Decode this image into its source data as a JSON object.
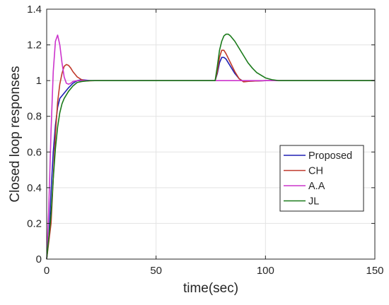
{
  "chart_data": {
    "type": "line",
    "title": "",
    "xlabel": "time(sec)",
    "ylabel": "Closed loop responses",
    "xlim": [
      0,
      150
    ],
    "ylim": [
      0,
      1.4
    ],
    "xticks": [
      0,
      50,
      100,
      150
    ],
    "yticks": [
      0,
      0.2,
      0.4,
      0.6,
      0.8,
      1,
      1.2,
      1.4
    ],
    "xtick_labels": [
      "0",
      "50",
      "100",
      "150"
    ],
    "ytick_labels": [
      "0",
      "0.2",
      "0.4",
      "0.6",
      "0.8",
      "1",
      "1.2",
      "1.4"
    ],
    "grid": true,
    "legend_position": "right-middle",
    "series": [
      {
        "name": "Proposed",
        "color": "#1f1fb4",
        "points": [
          [
            0,
            0
          ],
          [
            1,
            0.12
          ],
          [
            2,
            0.38
          ],
          [
            3,
            0.6
          ],
          [
            4,
            0.75
          ],
          [
            5,
            0.85
          ],
          [
            6,
            0.9
          ],
          [
            8,
            0.93
          ],
          [
            10,
            0.96
          ],
          [
            12,
            0.985
          ],
          [
            14,
            1.0
          ],
          [
            16,
            1.005
          ],
          [
            20,
            1.0
          ],
          [
            30,
            1.0
          ],
          [
            77,
            1.0
          ],
          [
            78,
            1.04
          ],
          [
            79,
            1.1
          ],
          [
            80,
            1.13
          ],
          [
            81,
            1.13
          ],
          [
            82,
            1.12
          ],
          [
            84,
            1.08
          ],
          [
            86,
            1.04
          ],
          [
            88,
            1.01
          ],
          [
            90,
            0.995
          ],
          [
            93,
            0.997
          ],
          [
            100,
            1.0
          ],
          [
            150,
            1.0
          ]
        ]
      },
      {
        "name": "CH",
        "color": "#c0392b",
        "points": [
          [
            0,
            0
          ],
          [
            2,
            0.2
          ],
          [
            3,
            0.45
          ],
          [
            4,
            0.7
          ],
          [
            5,
            0.88
          ],
          [
            6,
            0.98
          ],
          [
            7,
            1.04
          ],
          [
            8,
            1.08
          ],
          [
            9,
            1.09
          ],
          [
            10,
            1.085
          ],
          [
            11,
            1.07
          ],
          [
            12,
            1.05
          ],
          [
            14,
            1.02
          ],
          [
            16,
            1.005
          ],
          [
            18,
            0.998
          ],
          [
            22,
            1.0
          ],
          [
            77,
            1.0
          ],
          [
            78,
            1.05
          ],
          [
            79,
            1.13
          ],
          [
            80,
            1.17
          ],
          [
            81,
            1.17
          ],
          [
            82,
            1.15
          ],
          [
            84,
            1.1
          ],
          [
            86,
            1.05
          ],
          [
            88,
            1.01
          ],
          [
            90,
            0.993
          ],
          [
            93,
            0.997
          ],
          [
            100,
            1.0
          ],
          [
            150,
            1.0
          ]
        ]
      },
      {
        "name": "A.A",
        "color": "#cc33cc",
        "points": [
          [
            0,
            0
          ],
          [
            1,
            0.3
          ],
          [
            2,
            0.72
          ],
          [
            3,
            1.05
          ],
          [
            4,
            1.22
          ],
          [
            5,
            1.255
          ],
          [
            6,
            1.2
          ],
          [
            7,
            1.1
          ],
          [
            8,
            1.02
          ],
          [
            9,
            0.985
          ],
          [
            10,
            0.98
          ],
          [
            11,
            0.985
          ],
          [
            12,
            0.995
          ],
          [
            14,
            1.0
          ],
          [
            20,
            1.0
          ],
          [
            150,
            1.0
          ]
        ]
      },
      {
        "name": "JL",
        "color": "#1a7a1a",
        "points": [
          [
            0,
            0
          ],
          [
            2,
            0.25
          ],
          [
            3,
            0.45
          ],
          [
            4,
            0.62
          ],
          [
            5,
            0.74
          ],
          [
            6,
            0.82
          ],
          [
            7,
            0.87
          ],
          [
            8,
            0.9
          ],
          [
            10,
            0.94
          ],
          [
            12,
            0.97
          ],
          [
            14,
            0.99
          ],
          [
            16,
            0.995
          ],
          [
            20,
            1.0
          ],
          [
            77,
            1.0
          ],
          [
            78,
            1.08
          ],
          [
            79,
            1.17
          ],
          [
            80,
            1.22
          ],
          [
            81,
            1.25
          ],
          [
            82,
            1.26
          ],
          [
            83,
            1.26
          ],
          [
            84,
            1.25
          ],
          [
            86,
            1.22
          ],
          [
            88,
            1.18
          ],
          [
            90,
            1.14
          ],
          [
            92,
            1.1
          ],
          [
            94,
            1.07
          ],
          [
            96,
            1.045
          ],
          [
            98,
            1.03
          ],
          [
            100,
            1.015
          ],
          [
            103,
            1.005
          ],
          [
            106,
            1.0
          ],
          [
            150,
            1.0
          ]
        ]
      }
    ]
  }
}
